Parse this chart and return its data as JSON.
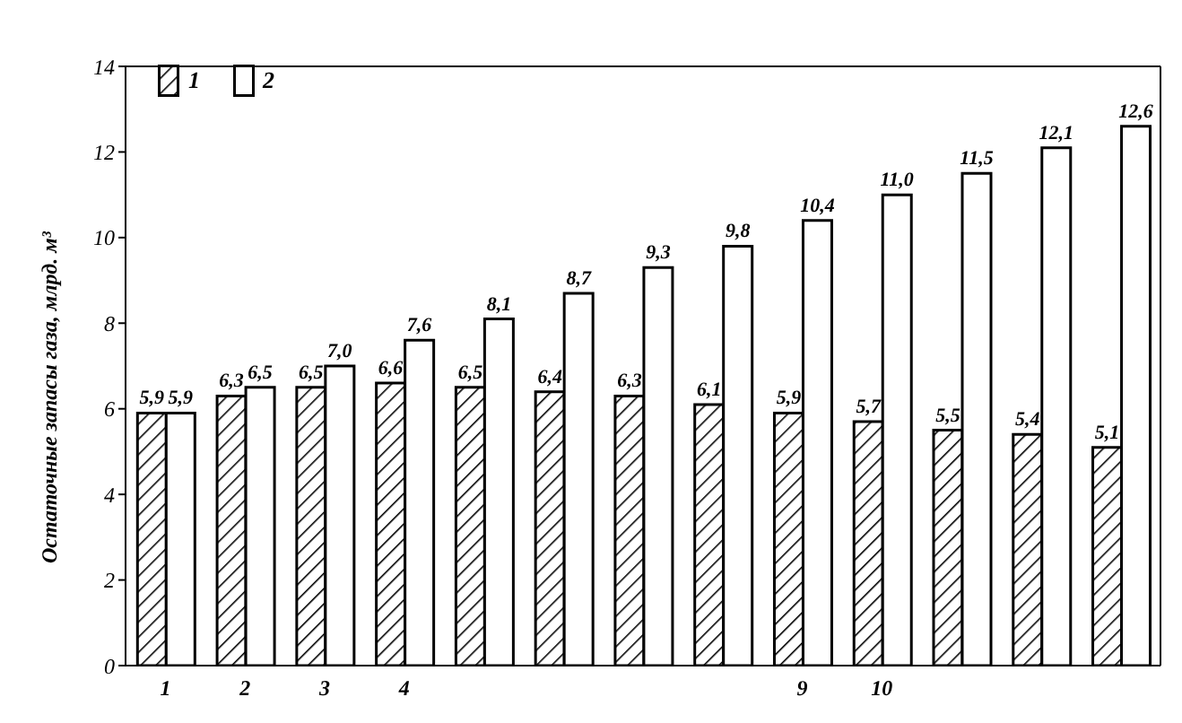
{
  "chart_data": {
    "type": "bar",
    "ylabel": "Остаточные запасы газа, млрд. м³",
    "categories": [
      "1",
      "2",
      "3",
      "4",
      null,
      null,
      null,
      null,
      "9",
      "10",
      null,
      null,
      null
    ],
    "series": [
      {
        "name": "1",
        "color": "#000000",
        "values": [
          5.9,
          6.3,
          6.5,
          6.6,
          6.5,
          6.4,
          6.3,
          6.1,
          5.9,
          5.7,
          5.5,
          5.4,
          5.1
        ],
        "value_labels": [
          "5,9",
          "6,3",
          "6,5",
          "6,6",
          "6,5",
          "6,4",
          "6,3",
          "6,1",
          "5,9",
          "5,7",
          "5,5",
          "5,4",
          "5,1"
        ]
      },
      {
        "name": "2",
        "color": "#ffffff",
        "values": [
          5.9,
          6.5,
          7.0,
          7.6,
          8.1,
          8.7,
          9.3,
          9.8,
          10.4,
          11.0,
          11.5,
          12.1,
          12.6
        ],
        "value_labels": [
          "5,9",
          "6,5",
          "7,0",
          "7,6",
          "8,1",
          "8,7",
          "9,3",
          "9,8",
          "10,4",
          "11,0",
          "11,5",
          "12,1",
          "12,6"
        ]
      }
    ],
    "ylim": [
      0,
      14
    ],
    "yticks": [
      0,
      2,
      4,
      6,
      8,
      10,
      12,
      14
    ],
    "legend": "top left",
    "grid": false
  }
}
